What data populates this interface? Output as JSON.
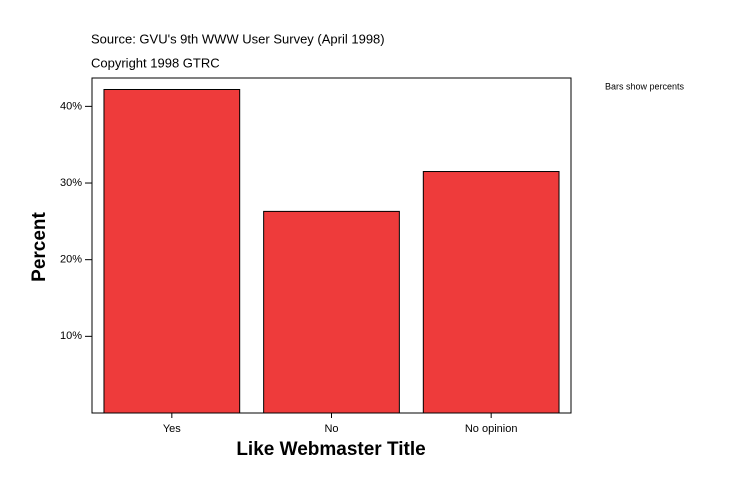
{
  "chart_data": {
    "type": "bar",
    "subtitle": [
      "Source: GVU's 9th WWW User Survey (April 1998)",
      "Copyright 1998 GTRC"
    ],
    "annotation": "Bars show percents",
    "x_label": "Like Webmaster Title",
    "y_label": "Percent",
    "categories": [
      "Yes",
      "No",
      "No opinion"
    ],
    "values": [
      42.2,
      26.3,
      31.5
    ],
    "color": "#ee3b3b",
    "ylim": [
      0,
      43.7
    ],
    "yticks": [
      {
        "value": 10,
        "label": "10%"
      },
      {
        "value": 20,
        "label": "20%"
      },
      {
        "value": 30,
        "label": "30%"
      },
      {
        "value": 40,
        "label": "40%"
      }
    ]
  }
}
